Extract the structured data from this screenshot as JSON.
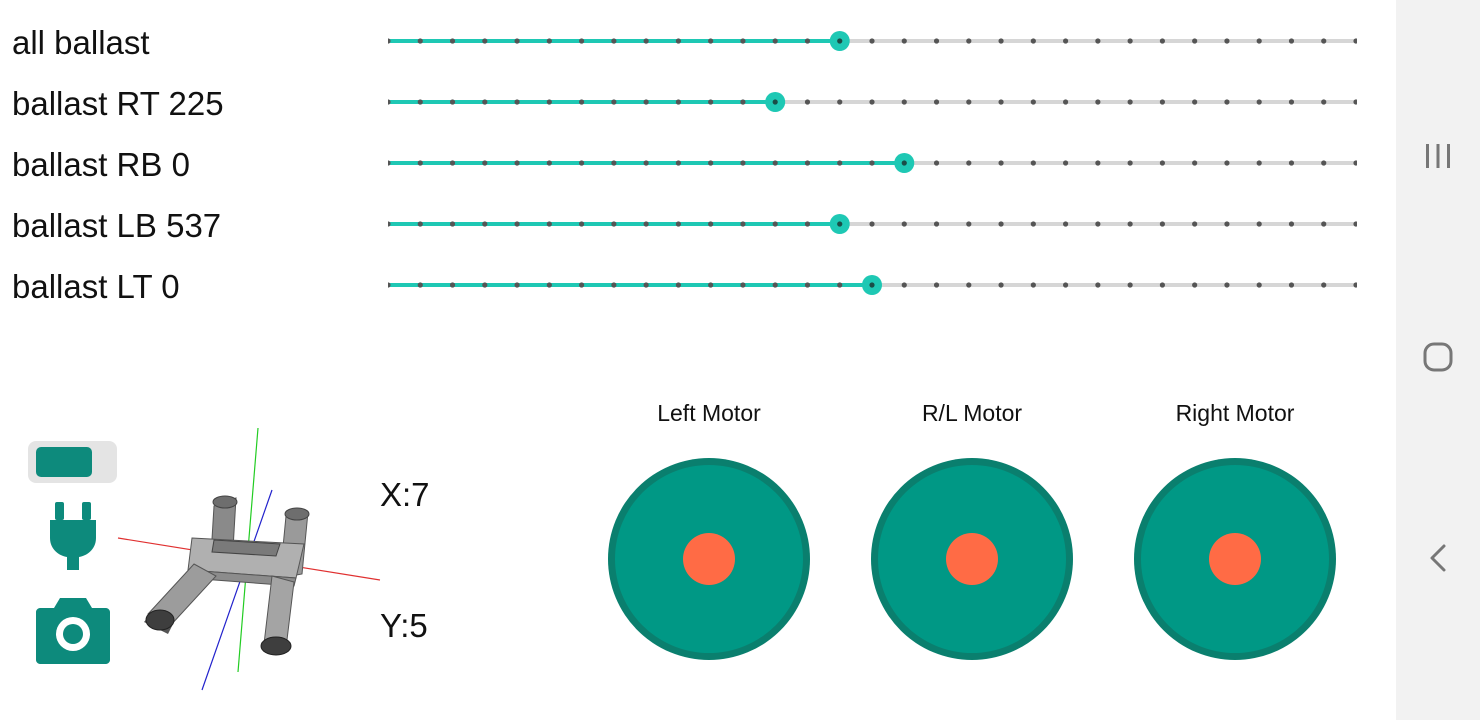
{
  "colors": {
    "accent": "#1ec8b4",
    "inactive_track": "#d6d6d6",
    "tick": "#555555",
    "joystick_outer": "#0a7f6e",
    "joystick_inner": "#009885",
    "joystick_knob": "#ff6b45",
    "icon_teal": "#0d8a7c",
    "nav_background": "#f2f2f2",
    "nav_icon": "#777777"
  },
  "sliders": [
    {
      "label": "all ballast",
      "steps": 30,
      "value_step": 14
    },
    {
      "label": "ballast RT 225",
      "steps": 30,
      "value_step": 12
    },
    {
      "label": "ballast RB 0",
      "steps": 30,
      "value_step": 16
    },
    {
      "label": "ballast LB 537",
      "steps": 30,
      "value_step": 14
    },
    {
      "label": "ballast LT 0",
      "steps": 30,
      "value_step": 15
    }
  ],
  "motors": [
    {
      "label": "Left Motor"
    },
    {
      "label": "R/L Motor"
    },
    {
      "label": "Right Motor"
    }
  ],
  "position": {
    "x_label": "X:7",
    "y_label": "Y:5"
  },
  "icons": {
    "toggle": "toggle-switch-icon",
    "power": "power-plug-icon",
    "camera": "camera-icon",
    "model": "3d-model-view",
    "nav_recent": "recent-apps-icon",
    "nav_home": "home-icon",
    "nav_back": "back-icon"
  }
}
